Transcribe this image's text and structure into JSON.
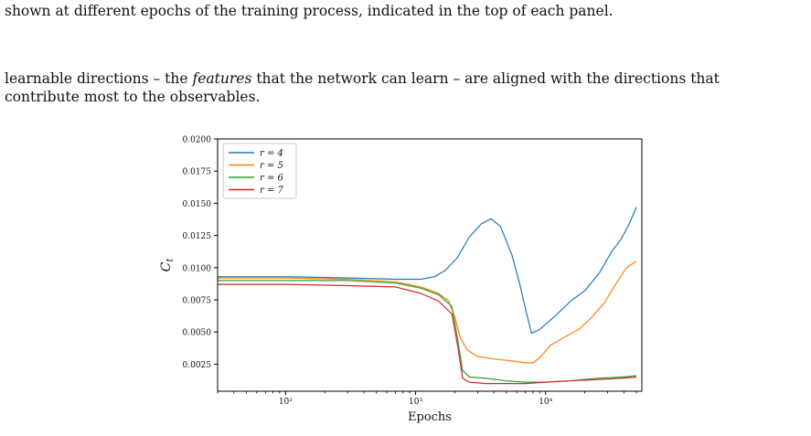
{
  "paper": {
    "caption_fragment": "shown at different epochs of the training process, indicated in the top of each panel.",
    "paragraph": {
      "line1_pre": "learnable directions – the ",
      "line1_em": "features",
      "line1_post": " that the network can learn – are aligned with the directions that",
      "line2": "contribute most to the observables."
    }
  },
  "chart_data": {
    "type": "line",
    "xscale": "log",
    "xlabel": "Epochs",
    "ylabel": "C_t",
    "xlim": [
      30,
      55000
    ],
    "ylim": [
      0.0004,
      0.02
    ],
    "xticks": [
      100,
      1000,
      10000
    ],
    "xtick_labels": [
      "10²",
      "10³",
      "10⁴"
    ],
    "yticks": [
      0.0025,
      0.005,
      0.0075,
      0.01,
      0.0125,
      0.015,
      0.0175,
      0.02
    ],
    "ytick_labels": [
      "0.0025",
      "0.0050",
      "0.0075",
      "0.0100",
      "0.0125",
      "0.0150",
      "0.0175",
      "0.0200"
    ],
    "grid": false,
    "legend_position": "top-left",
    "series": [
      {
        "name": "r = 4",
        "color": "#1f77b4",
        "points": [
          [
            30,
            0.0093
          ],
          [
            100,
            0.0093
          ],
          [
            300,
            0.0092
          ],
          [
            700,
            0.0091
          ],
          [
            1100,
            0.0091
          ],
          [
            1400,
            0.0093
          ],
          [
            1700,
            0.0098
          ],
          [
            2100,
            0.0108
          ],
          [
            2600,
            0.0124
          ],
          [
            3200,
            0.0134
          ],
          [
            3800,
            0.0138
          ],
          [
            4500,
            0.0132
          ],
          [
            5500,
            0.011
          ],
          [
            6300,
            0.0088
          ],
          [
            7200,
            0.0063
          ],
          [
            7800,
            0.0049
          ],
          [
            9000,
            0.0052
          ],
          [
            12000,
            0.0063
          ],
          [
            16000,
            0.0075
          ],
          [
            20000,
            0.0082
          ],
          [
            26000,
            0.0096
          ],
          [
            32000,
            0.0112
          ],
          [
            38000,
            0.0122
          ],
          [
            44000,
            0.0134
          ],
          [
            50000,
            0.0147
          ]
        ]
      },
      {
        "name": "r = 5",
        "color": "#ff7f0e",
        "points": [
          [
            30,
            0.0092
          ],
          [
            100,
            0.0092
          ],
          [
            300,
            0.0091
          ],
          [
            700,
            0.0089
          ],
          [
            1100,
            0.0085
          ],
          [
            1500,
            0.008
          ],
          [
            1800,
            0.0074
          ],
          [
            2000,
            0.0062
          ],
          [
            2200,
            0.0046
          ],
          [
            2500,
            0.0036
          ],
          [
            3000,
            0.0031
          ],
          [
            4000,
            0.0029
          ],
          [
            5000,
            0.0028
          ],
          [
            6000,
            0.0027
          ],
          [
            7000,
            0.0026
          ],
          [
            8000,
            0.0026
          ],
          [
            9000,
            0.003
          ],
          [
            11000,
            0.004
          ],
          [
            14000,
            0.0046
          ],
          [
            18000,
            0.0052
          ],
          [
            22000,
            0.006
          ],
          [
            28000,
            0.0072
          ],
          [
            35000,
            0.0088
          ],
          [
            42000,
            0.01
          ],
          [
            50000,
            0.0105
          ]
        ]
      },
      {
        "name": "r = 6",
        "color": "#2ca02c",
        "points": [
          [
            30,
            0.009
          ],
          [
            100,
            0.009
          ],
          [
            300,
            0.009
          ],
          [
            700,
            0.0088
          ],
          [
            1100,
            0.0084
          ],
          [
            1500,
            0.0079
          ],
          [
            1900,
            0.007
          ],
          [
            2100,
            0.0045
          ],
          [
            2300,
            0.002
          ],
          [
            2600,
            0.0015
          ],
          [
            3500,
            0.0014
          ],
          [
            5000,
            0.0012
          ],
          [
            7000,
            0.0011
          ],
          [
            10000,
            0.0011
          ],
          [
            15000,
            0.0012
          ],
          [
            25000,
            0.0014
          ],
          [
            38000,
            0.0015
          ],
          [
            50000,
            0.0016
          ]
        ]
      },
      {
        "name": "r = 7",
        "color": "#d62728",
        "points": [
          [
            30,
            0.0087
          ],
          [
            100,
            0.0087
          ],
          [
            300,
            0.0086
          ],
          [
            700,
            0.0085
          ],
          [
            1100,
            0.008
          ],
          [
            1500,
            0.0074
          ],
          [
            1900,
            0.0064
          ],
          [
            2100,
            0.004
          ],
          [
            2300,
            0.0014
          ],
          [
            2600,
            0.0011
          ],
          [
            3500,
            0.001
          ],
          [
            5000,
            0.001
          ],
          [
            7000,
            0.001
          ],
          [
            10000,
            0.0011
          ],
          [
            15000,
            0.0012
          ],
          [
            25000,
            0.0013
          ],
          [
            38000,
            0.0014
          ],
          [
            50000,
            0.0015
          ]
        ]
      }
    ]
  }
}
